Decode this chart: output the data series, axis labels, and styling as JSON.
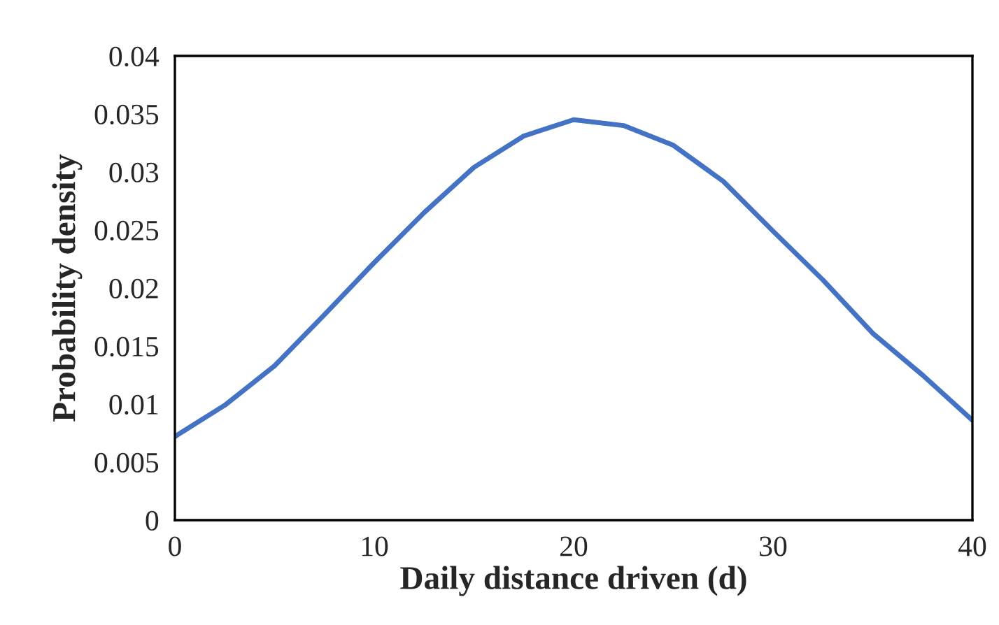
{
  "chart_data": {
    "type": "line",
    "xlabel": "Daily distance driven (d)",
    "ylabel": "Probability density",
    "x": [
      0,
      2.5,
      5,
      7.5,
      10,
      12.5,
      15,
      17.5,
      20,
      22.5,
      25,
      27.5,
      30,
      32.5,
      35,
      37.5,
      40
    ],
    "series": [
      {
        "color": "#4472c4",
        "values": [
          0.0072,
          0.0099,
          0.0133,
          0.0177,
          0.0222,
          0.0265,
          0.0304,
          0.0331,
          0.0345,
          0.034,
          0.0323,
          0.0292,
          0.0249,
          0.0207,
          0.0161,
          0.0125,
          0.0086
        ]
      }
    ],
    "xlim": [
      0,
      40
    ],
    "xticks": [
      0,
      10,
      20,
      30,
      40
    ],
    "ylim": [
      0,
      0.04
    ],
    "yticks": [
      0,
      0.005,
      0.01,
      0.015,
      0.02,
      0.025,
      0.03,
      0.035,
      0.04
    ],
    "grid": false,
    "legend": false
  }
}
